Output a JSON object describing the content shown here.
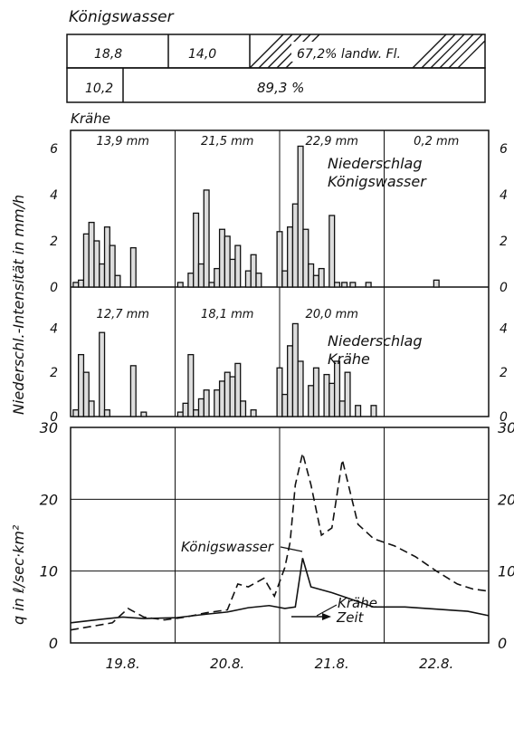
{
  "header": {
    "title": "Königswasser",
    "row1": {
      "a": "18,8",
      "b": "14,0",
      "c": "67,2% landw. Fl."
    },
    "row2": {
      "a": "10,2",
      "b": "89,3 %"
    },
    "krahe_label": "Krähe"
  },
  "chart_data": [
    {
      "type": "bar",
      "title": "Niederschlag Königswasser",
      "ylabel": "Niederschl.-Intensität in mm/h",
      "ylim": [
        0,
        6
      ],
      "yticks": [
        "0",
        "2",
        "4",
        "6"
      ],
      "period_totals": [
        "13,9 mm",
        "21,5 mm",
        "22,9 mm",
        "0,2 mm"
      ],
      "x_days": [
        0,
        4
      ],
      "bars": [
        [
          0.05,
          0.2
        ],
        [
          0.1,
          0.3
        ],
        [
          0.15,
          2.3
        ],
        [
          0.2,
          2.8
        ],
        [
          0.25,
          2.0
        ],
        [
          0.3,
          1.0
        ],
        [
          0.35,
          2.6
        ],
        [
          0.4,
          1.8
        ],
        [
          0.45,
          0.5
        ],
        [
          0.6,
          1.7
        ],
        [
          1.05,
          0.2
        ],
        [
          1.15,
          0.6
        ],
        [
          1.2,
          3.2
        ],
        [
          1.25,
          1.0
        ],
        [
          1.3,
          4.2
        ],
        [
          1.35,
          0.2
        ],
        [
          1.4,
          0.8
        ],
        [
          1.45,
          2.5
        ],
        [
          1.5,
          2.2
        ],
        [
          1.55,
          1.2
        ],
        [
          1.6,
          1.8
        ],
        [
          1.7,
          0.7
        ],
        [
          1.75,
          1.4
        ],
        [
          1.8,
          0.6
        ],
        [
          2.0,
          2.4
        ],
        [
          2.05,
          0.7
        ],
        [
          2.1,
          2.6
        ],
        [
          2.15,
          3.6
        ],
        [
          2.2,
          6.1
        ],
        [
          2.25,
          2.5
        ],
        [
          2.3,
          1.0
        ],
        [
          2.35,
          0.5
        ],
        [
          2.4,
          0.8
        ],
        [
          2.5,
          3.1
        ],
        [
          2.55,
          0.2
        ],
        [
          2.62,
          0.2
        ],
        [
          2.7,
          0.2
        ],
        [
          2.85,
          0.2
        ],
        [
          3.5,
          0.3
        ]
      ]
    },
    {
      "type": "bar",
      "title": "Niederschlag Krähe",
      "ylim": [
        0,
        4.3
      ],
      "yticks": [
        "0",
        "2",
        "4"
      ],
      "period_totals": [
        "12,7 mm",
        "18,1 mm",
        "20,0 mm"
      ],
      "bars": [
        [
          0.05,
          0.3
        ],
        [
          0.1,
          2.8
        ],
        [
          0.15,
          2.0
        ],
        [
          0.2,
          0.7
        ],
        [
          0.3,
          3.8
        ],
        [
          0.35,
          0.3
        ],
        [
          0.6,
          2.3
        ],
        [
          0.7,
          0.2
        ],
        [
          1.05,
          0.2
        ],
        [
          1.1,
          0.6
        ],
        [
          1.15,
          2.8
        ],
        [
          1.2,
          0.3
        ],
        [
          1.25,
          0.8
        ],
        [
          1.3,
          1.2
        ],
        [
          1.4,
          1.2
        ],
        [
          1.45,
          1.6
        ],
        [
          1.5,
          2.0
        ],
        [
          1.55,
          1.8
        ],
        [
          1.6,
          2.4
        ],
        [
          1.65,
          0.7
        ],
        [
          1.75,
          0.3
        ],
        [
          2.0,
          2.2
        ],
        [
          2.05,
          1.0
        ],
        [
          2.1,
          3.2
        ],
        [
          2.15,
          4.2
        ],
        [
          2.2,
          2.5
        ],
        [
          2.3,
          1.4
        ],
        [
          2.35,
          2.2
        ],
        [
          2.45,
          1.9
        ],
        [
          2.5,
          1.5
        ],
        [
          2.55,
          2.5
        ],
        [
          2.6,
          0.7
        ],
        [
          2.65,
          2.0
        ],
        [
          2.75,
          0.5
        ],
        [
          2.9,
          0.5
        ]
      ]
    },
    {
      "type": "line",
      "ylabel": "q in ℓ/sec·km²",
      "ylim": [
        0,
        30
      ],
      "yticks": [
        "0",
        "10",
        "20",
        "30"
      ],
      "xticks": [
        "19.8.",
        "20.8.",
        "21.8.",
        "22.8."
      ],
      "xlabel": "Zeit",
      "series": [
        {
          "name": "Königswasser",
          "style": "dashed",
          "x": [
            0,
            0.2,
            0.4,
            0.55,
            0.7,
            0.9,
            1.1,
            1.3,
            1.5,
            1.6,
            1.7,
            1.85,
            1.95,
            2.05,
            2.1,
            2.15,
            2.22,
            2.3,
            2.4,
            2.5,
            2.6,
            2.75,
            2.9,
            3.1,
            3.3,
            3.5,
            3.7,
            3.85,
            4.0
          ],
          "y": [
            1.8,
            2.3,
            2.8,
            4.8,
            3.6,
            3.2,
            3.6,
            4.2,
            4.6,
            8.2,
            7.8,
            9.0,
            6.5,
            10.5,
            14.0,
            22.0,
            26.4,
            22.0,
            15.0,
            16.0,
            25.5,
            16.5,
            14.5,
            13.5,
            12.0,
            10.0,
            8.2,
            7.5,
            7.2
          ]
        },
        {
          "name": "Krähe",
          "style": "solid",
          "x": [
            0,
            0.3,
            0.5,
            0.7,
            1.0,
            1.3,
            1.5,
            1.7,
            1.9,
            2.05,
            2.15,
            2.22,
            2.3,
            2.5,
            2.7,
            2.9,
            3.2,
            3.5,
            3.8,
            4.0
          ],
          "y": [
            2.8,
            3.3,
            3.6,
            3.4,
            3.5,
            4.0,
            4.3,
            4.9,
            5.2,
            4.8,
            5.0,
            11.8,
            7.8,
            7.0,
            6.0,
            5.0,
            5.0,
            4.7,
            4.4,
            3.8
          ]
        }
      ]
    }
  ]
}
